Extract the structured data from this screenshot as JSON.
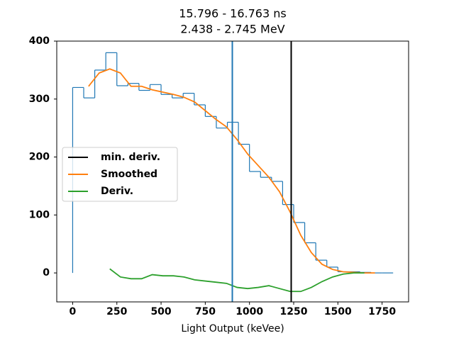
{
  "chart_data": {
    "type": "histogram",
    "title": [
      "15.796 - 16.763 ns",
      "2.438 - 2.745 MeV"
    ],
    "x_label": "Light Output (keVee)",
    "bins": [
      0,
      62.5,
      125,
      187.5,
      250,
      312.5,
      375,
      437.5,
      500,
      562.5,
      625,
      687.5,
      750,
      812.5,
      875,
      937.5,
      1000,
      1062.5,
      1125,
      1187.5,
      1250,
      1312.5,
      1375,
      1437.5,
      1500,
      1562.5,
      1625,
      1687.5,
      1750,
      1812.5
    ],
    "values": [
      320,
      302,
      350,
      380,
      323,
      327,
      315,
      325,
      308,
      302,
      310,
      290,
      270,
      250,
      260,
      222,
      175,
      165,
      158,
      118,
      87,
      52,
      22,
      10,
      2,
      2,
      1,
      0,
      0
    ],
    "color": "#1f77b4",
    "series": [
      {
        "name": "Smoothed",
        "color": "#ff7f0e",
        "x": [
          90,
          150,
          210,
          270,
          330,
          390,
          450,
          510,
          570,
          630,
          690,
          750,
          810,
          870,
          930,
          990,
          1050,
          1110,
          1170,
          1230,
          1290,
          1350,
          1410,
          1470,
          1530,
          1590,
          1650,
          1710
        ],
        "values": [
          322,
          345,
          352,
          345,
          322,
          322,
          316,
          312,
          308,
          303,
          295,
          280,
          265,
          252,
          230,
          205,
          185,
          165,
          140,
          105,
          65,
          35,
          15,
          6,
          2,
          1,
          0,
          0
        ]
      },
      {
        "name": "Deriv.",
        "color": "#2ca02c",
        "x": [
          210,
          270,
          330,
          390,
          450,
          510,
          570,
          630,
          690,
          750,
          810,
          870,
          930,
          990,
          1050,
          1110,
          1170,
          1230,
          1290,
          1350,
          1410,
          1470,
          1530,
          1590,
          1650
        ],
        "values": [
          7,
          -7,
          -10,
          -10,
          -3,
          -5,
          -5,
          -7,
          -12,
          -14,
          -16,
          -18,
          -25,
          -27,
          -25,
          -22,
          -27,
          -32,
          -32,
          -25,
          -15,
          -7,
          -2,
          0,
          0
        ]
      }
    ],
    "vlines": [
      {
        "name": "min. deriv.",
        "x": 1236,
        "color": "#000000"
      },
      {
        "x": 903,
        "color": "#1f77b4"
      }
    ],
    "xlim": [
      -90,
      1900
    ],
    "ylim": [
      -50,
      400
    ],
    "xticks": [
      0,
      250,
      500,
      750,
      1000,
      1250,
      1500,
      1750
    ],
    "yticks": [
      0,
      100,
      200,
      300,
      400
    ],
    "legend": "center left"
  }
}
